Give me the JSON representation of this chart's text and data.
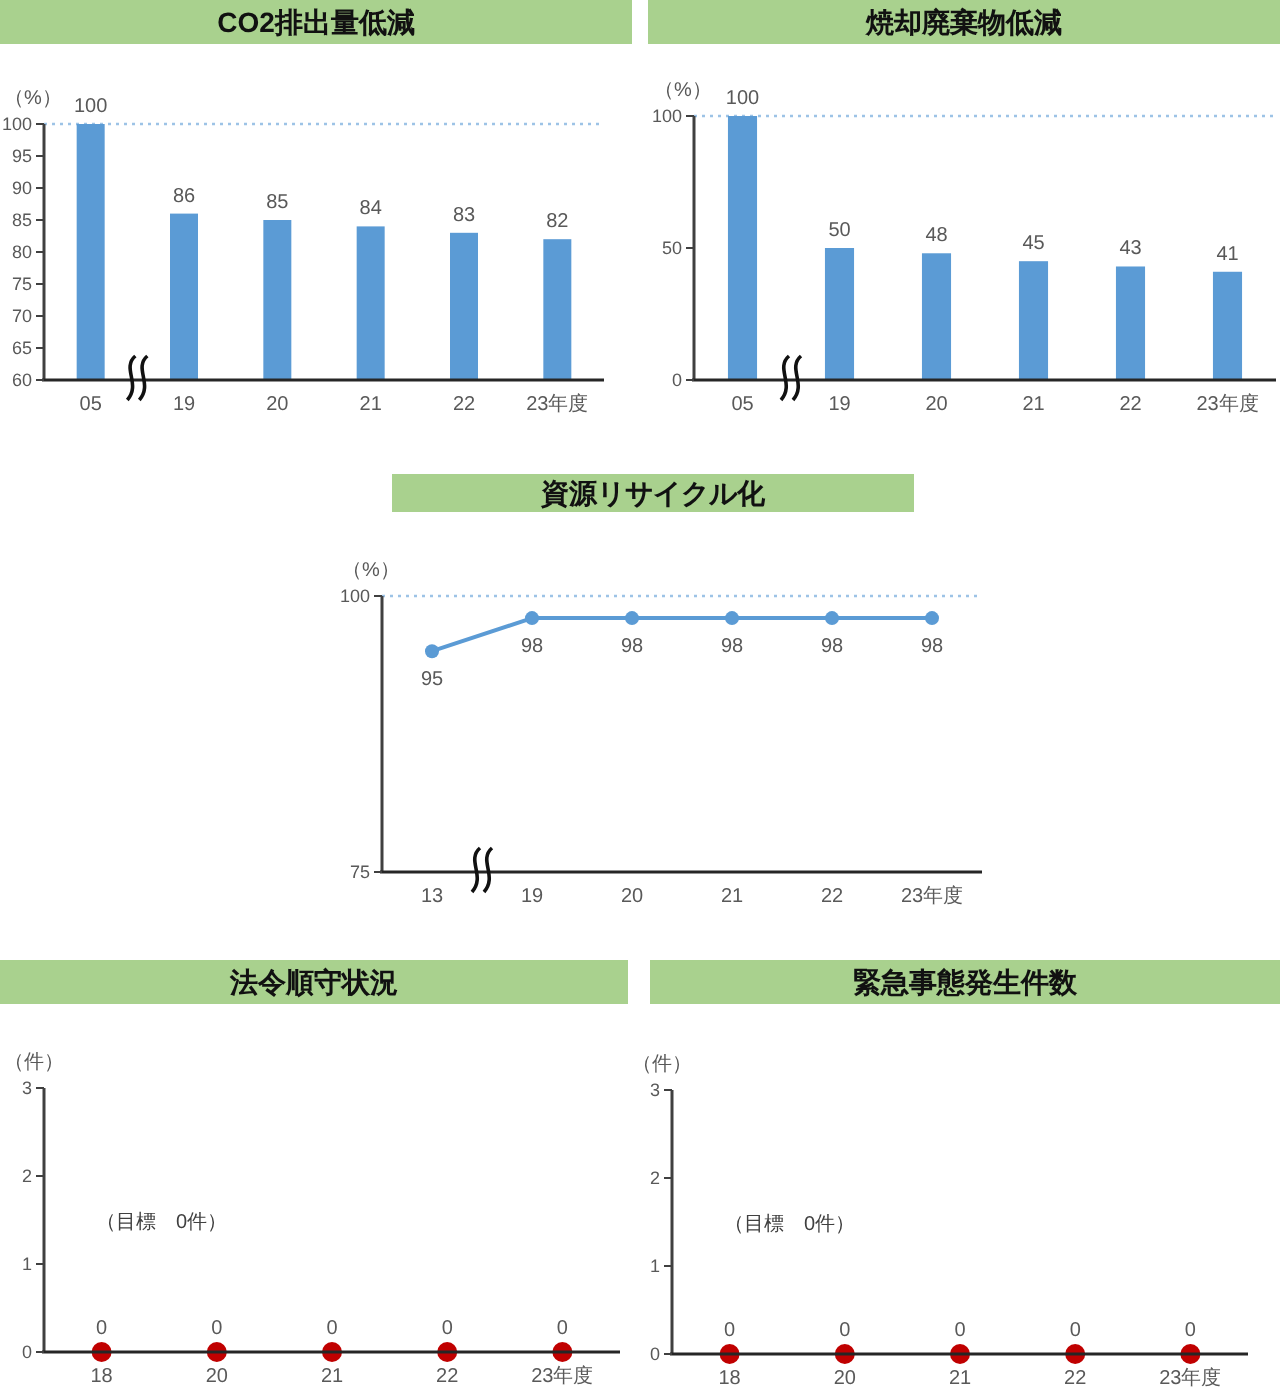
{
  "chart_data": [
    {
      "type": "bar",
      "title": "CO2排出量低減",
      "ylabel": "（%）",
      "categories": [
        "05",
        "19",
        "20",
        "21",
        "22",
        "23年度"
      ],
      "values": [
        100,
        86,
        85,
        84,
        83,
        82
      ],
      "color": "#5b9bd5",
      "ylim": [
        60,
        100
      ],
      "yticks": [
        60,
        65,
        70,
        75,
        80,
        85,
        90,
        95,
        100
      ],
      "data_labels": true,
      "ref_lines": [
        {
          "axis": "y",
          "value": 100,
          "color": "#9dc3e6",
          "line_style": "dotted"
        }
      ]
    },
    {
      "type": "bar",
      "title": "焼却廃棄物低減",
      "ylabel": "（%）",
      "categories": [
        "05",
        "19",
        "20",
        "21",
        "22",
        "23年度"
      ],
      "values": [
        100,
        50,
        48,
        45,
        43,
        41
      ],
      "color": "#5b9bd5",
      "ylim": [
        0,
        100
      ],
      "yticks": [
        0,
        50,
        100
      ],
      "data_labels": true,
      "ref_lines": [
        {
          "axis": "y",
          "value": 100,
          "color": "#9dc3e6",
          "line_style": "dotted"
        }
      ]
    },
    {
      "type": "line",
      "title": "資源リサイクル化",
      "ylabel": "（%）",
      "categories": [
        "13",
        "19",
        "20",
        "21",
        "22",
        "23年度"
      ],
      "values": [
        95,
        98,
        98,
        98,
        98,
        98
      ],
      "color": "#5b9bd5",
      "ylim": [
        75,
        100
      ],
      "yticks": [
        75,
        100
      ],
      "marker": "circle",
      "line_style": "solid",
      "data_labels": true,
      "ref_lines": [
        {
          "axis": "y",
          "value": 100,
          "color": "#9dc3e6",
          "line_style": "dotted"
        }
      ]
    },
    {
      "type": "scatter",
      "title": "法令順守状況",
      "ylabel": "（件）",
      "categories": [
        "18",
        "20",
        "21",
        "22",
        "23年度"
      ],
      "values": [
        0,
        0,
        0,
        0,
        0
      ],
      "color": "#c00000",
      "ylim": [
        0,
        3
      ],
      "yticks": [
        0,
        1,
        2,
        3
      ],
      "marker": "circle",
      "data_labels": true,
      "annotations": [
        "（目標　0件）"
      ]
    },
    {
      "type": "scatter",
      "title": "緊急事態発生件数",
      "ylabel": "（件）",
      "categories": [
        "18",
        "20",
        "21",
        "22",
        "23年度"
      ],
      "values": [
        0,
        0,
        0,
        0,
        0
      ],
      "color": "#c00000",
      "ylim": [
        0,
        3
      ],
      "yticks": [
        0,
        1,
        2,
        3
      ],
      "marker": "circle",
      "data_labels": true,
      "annotations": [
        "（目標　0件）"
      ]
    }
  ]
}
